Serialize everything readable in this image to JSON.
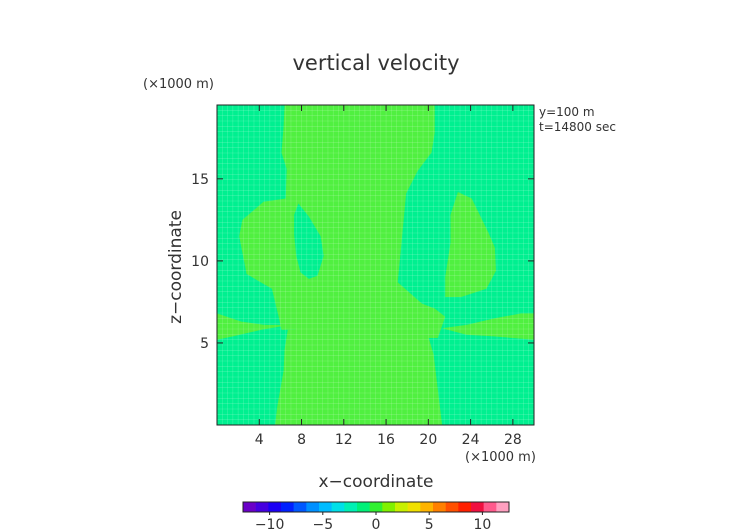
{
  "chart_data": {
    "type": "heatmap",
    "title": "vertical velocity",
    "xlabel": "x−coordinate",
    "ylabel": "z−coordinate",
    "x_unit": "(×1000 m)",
    "y_unit": "(×1000 m)",
    "annotations": [
      "y=100 m",
      "t=14800 sec"
    ],
    "xlim": [
      0,
      30
    ],
    "ylim": [
      0,
      19.5
    ],
    "x_ticks": [
      4,
      8,
      12,
      16,
      20,
      24,
      28
    ],
    "x_tick_labels": [
      "4",
      "8",
      "12",
      "16",
      "20",
      "24",
      "28"
    ],
    "y_ticks": [
      5,
      10,
      15
    ],
    "y_tick_labels": [
      "5",
      "10",
      "15"
    ],
    "background_value": -1,
    "background_color": "#00f090",
    "grid": true,
    "regions": [
      {
        "value": 1,
        "color": "#50f040",
        "points": [
          [
            6.4,
            19.5
          ],
          [
            15.9,
            19.5
          ],
          [
            20.6,
            19.5
          ],
          [
            20.6,
            17.8
          ],
          [
            20.3,
            16.6
          ],
          [
            19,
            15.5
          ],
          [
            17.9,
            14.1
          ],
          [
            17.4,
            10.7
          ],
          [
            17.1,
            8.7
          ],
          [
            19.4,
            7.4
          ],
          [
            20.6,
            7.1
          ],
          [
            21.6,
            6.6
          ],
          [
            20.9,
            5.3
          ],
          [
            16.3,
            5.3
          ],
          [
            12.2,
            5.3
          ],
          [
            7.4,
            5.8
          ],
          [
            6.1,
            5.8
          ],
          [
            5.8,
            6.7
          ],
          [
            5.2,
            8.3
          ],
          [
            2.8,
            9.2
          ],
          [
            2.1,
            11.5
          ],
          [
            2.4,
            12.5
          ],
          [
            4.4,
            13.6
          ],
          [
            6.5,
            13.8
          ],
          [
            6.6,
            15.6
          ],
          [
            6.1,
            16.6
          ],
          [
            6.3,
            18.2
          ]
        ]
      },
      {
        "value": -1,
        "color": "#00f090",
        "points": [
          [
            7.7,
            13.5
          ],
          [
            8.7,
            12.7
          ],
          [
            9.8,
            11.5
          ],
          [
            10.1,
            10.3
          ],
          [
            9.5,
            9.1
          ],
          [
            8.7,
            8.9
          ],
          [
            7.9,
            9.3
          ],
          [
            7.5,
            10.3
          ],
          [
            7.3,
            11.6
          ],
          [
            7.3,
            12.8
          ]
        ]
      },
      {
        "value": 1,
        "color": "#50f040",
        "points": [
          [
            6.7,
            5.8
          ],
          [
            10.9,
            5.8
          ],
          [
            16.3,
            5.8
          ],
          [
            19.9,
            5.6
          ],
          [
            20.5,
            4.3
          ],
          [
            21.3,
            0
          ],
          [
            5.5,
            0
          ],
          [
            5.7,
            1.1
          ],
          [
            6.3,
            3.3
          ],
          [
            6.4,
            4.6
          ]
        ]
      },
      {
        "value": 1,
        "color": "#50f040",
        "points": [
          [
            22.8,
            14.2
          ],
          [
            24.1,
            13.8
          ],
          [
            25.7,
            11.7
          ],
          [
            26.3,
            10.8
          ],
          [
            26.4,
            9.4
          ],
          [
            25.5,
            8.3
          ],
          [
            23.1,
            7.8
          ],
          [
            21.6,
            7.8
          ],
          [
            21.6,
            9
          ],
          [
            22.1,
            11.1
          ],
          [
            22.1,
            12.8
          ]
        ]
      },
      {
        "value": 1,
        "color": "#50f040",
        "points": [
          [
            0,
            6.8
          ],
          [
            2.3,
            6.3
          ],
          [
            4.5,
            6.1
          ],
          [
            6.9,
            6.1
          ],
          [
            4.2,
            5.8
          ],
          [
            1.5,
            5.4
          ],
          [
            0,
            5.2
          ]
        ]
      },
      {
        "value": 1,
        "color": "#50f040",
        "points": [
          [
            30,
            6.8
          ],
          [
            28.8,
            6.8
          ],
          [
            26.3,
            6.5
          ],
          [
            23.6,
            6.1
          ],
          [
            21.3,
            5.9
          ],
          [
            23.6,
            5.5
          ],
          [
            26.2,
            5.4
          ],
          [
            30,
            5.2
          ]
        ]
      }
    ],
    "colorbar": {
      "min": -12.5,
      "max": 12.5,
      "ticks": [
        -10,
        -5,
        0,
        5,
        10
      ],
      "tick_labels": [
        "−10",
        "−5",
        "0",
        "5",
        "10"
      ],
      "colors": [
        "#6a00c8",
        "#4600e0",
        "#1c00f4",
        "#0020ff",
        "#0058ff",
        "#0090ff",
        "#00bcff",
        "#00e0e8",
        "#00f0b4",
        "#00f078",
        "#30f030",
        "#80f000",
        "#c8f000",
        "#f0e000",
        "#ffb400",
        "#ff8000",
        "#ff5000",
        "#ff2000",
        "#f01040",
        "#ff5a8c",
        "#ffa0c0"
      ]
    }
  }
}
